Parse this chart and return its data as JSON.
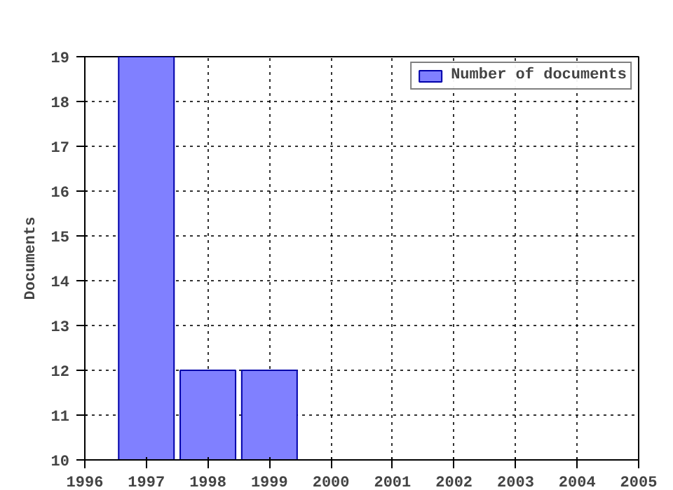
{
  "chart_data": {
    "type": "bar",
    "ylabel": "Documents",
    "x": [
      1997,
      1998,
      1999
    ],
    "series": [
      {
        "name": "Number of documents",
        "color": "#8080ff",
        "values": [
          19,
          12,
          12
        ]
      }
    ],
    "xlim": [
      1996,
      2005
    ],
    "xticks": [
      1996,
      1997,
      1998,
      1999,
      2000,
      2001,
      2002,
      2003,
      2004,
      2005
    ],
    "ylim": [
      10,
      19
    ],
    "yticks": [
      10,
      11,
      12,
      13,
      14,
      15,
      16,
      17,
      18,
      19
    ],
    "grid": true,
    "legend": "top right"
  }
}
